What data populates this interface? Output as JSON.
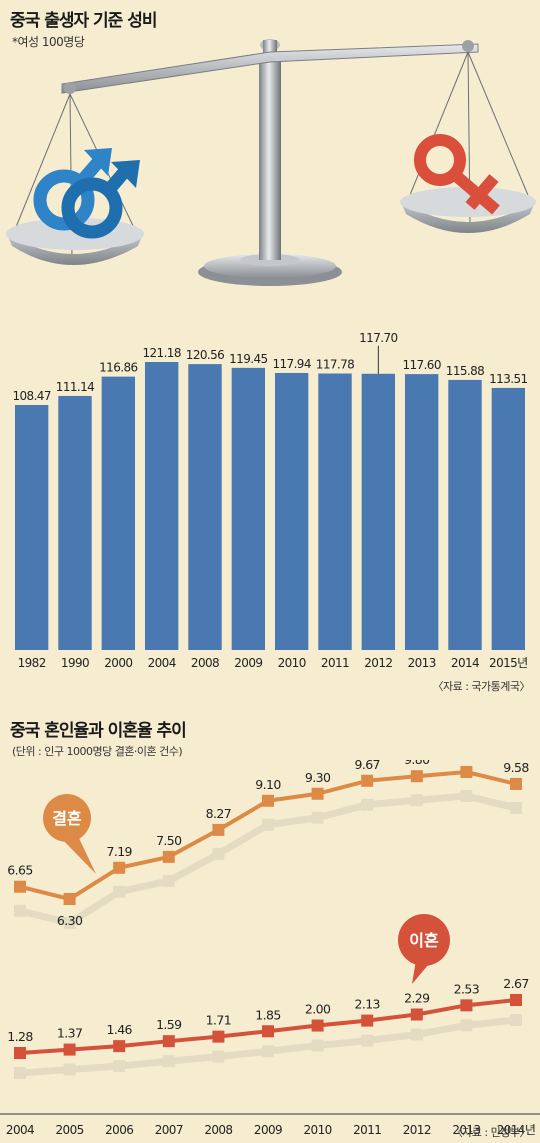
{
  "chart1": {
    "title": "중국 출생자 기준 성비",
    "subtitle": "*여성 100명당",
    "source": "〈자료 : 국가통계국〉"
  },
  "chart2": {
    "title": "중국 혼인율과 이혼율 추이",
    "subtitle": "(단위 : 인구 1000명당 결혼·이혼 건수)",
    "source": "〈자료 : 민정부〉",
    "marriage_badge": "결혼",
    "divorce_badge": "이혼"
  },
  "colors": {
    "background": "#f6edd1",
    "bar": "#4a78b0",
    "marriage": "#dc8a45",
    "divorce": "#d4513a",
    "male_symbol": "#2f84c7",
    "female_symbol": "#d94f3c"
  },
  "chart_data": [
    {
      "type": "bar",
      "title": "중국 출생자 기준 성비",
      "subtitle": "*여성 100명당",
      "categories": [
        "1982",
        "1990",
        "2000",
        "2004",
        "2008",
        "2009",
        "2010",
        "2011",
        "2012",
        "2013",
        "2014",
        "2015년"
      ],
      "values": [
        108.47,
        111.14,
        116.86,
        121.18,
        120.56,
        119.45,
        117.94,
        117.78,
        117.7,
        117.6,
        115.88,
        113.51
      ],
      "value_labels": [
        "108.47",
        "111.14",
        "116.86",
        "121.18",
        "120.56",
        "119.45",
        "117.94",
        "117.78",
        "117.70",
        "117.60",
        "115.88",
        "113.51"
      ],
      "ylim": [
        0,
        124
      ],
      "grid": false
    },
    {
      "type": "line",
      "title": "중국 혼인율과 이혼율 추이",
      "subtitle": "(단위 : 인구 1000명당 결혼·이혼 건수)",
      "categories": [
        "2004",
        "2005",
        "2006",
        "2007",
        "2008",
        "2009",
        "2010",
        "2011",
        "2012",
        "2013",
        "2014년"
      ],
      "series": [
        {
          "name": "결혼",
          "values": [
            6.65,
            6.3,
            7.19,
            7.5,
            8.27,
            9.1,
            9.3,
            9.67,
            9.8,
            9.92,
            9.58
          ],
          "labels": [
            "6.65",
            "6.30",
            "7.19",
            "7.50",
            "8.27",
            "9.10",
            "9.30",
            "9.67",
            "9.80",
            "9.92",
            "9.58"
          ]
        },
        {
          "name": "이혼",
          "values": [
            1.28,
            1.37,
            1.46,
            1.59,
            1.71,
            1.85,
            2.0,
            2.13,
            2.29,
            2.53,
            2.67
          ],
          "labels": [
            "1.28",
            "1.37",
            "1.46",
            "1.59",
            "1.71",
            "1.85",
            "2.00",
            "2.13",
            "2.29",
            "2.53",
            "2.67"
          ]
        }
      ],
      "grid": false
    }
  ]
}
